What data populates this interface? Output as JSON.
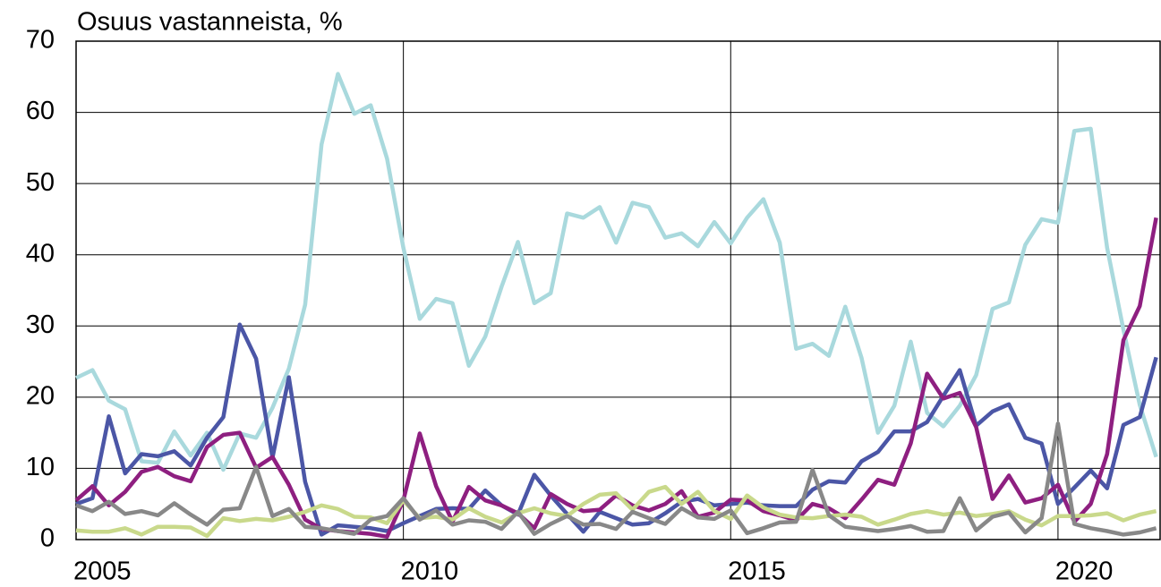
{
  "chart_data": {
    "type": "line",
    "y_axis_label": "Osuus vastanneista, %",
    "x": [
      2005,
      2005.25,
      2005.5,
      2005.75,
      2006,
      2006.25,
      2006.5,
      2006.75,
      2007,
      2007.25,
      2007.5,
      2007.75,
      2008,
      2008.25,
      2008.5,
      2008.75,
      2009,
      2009.25,
      2009.5,
      2009.75,
      2010,
      2010.25,
      2010.5,
      2010.75,
      2011,
      2011.25,
      2011.5,
      2011.75,
      2012,
      2012.25,
      2012.5,
      2012.75,
      2013,
      2013.25,
      2013.5,
      2013.75,
      2014,
      2014.25,
      2014.5,
      2014.75,
      2015,
      2015.25,
      2015.5,
      2015.75,
      2016,
      2016.25,
      2016.5,
      2016.75,
      2017,
      2017.25,
      2017.5,
      2017.75,
      2018,
      2018.25,
      2018.5,
      2018.75,
      2019,
      2019.25,
      2019.5,
      2019.75,
      2020,
      2020.25,
      2020.5,
      2020.75,
      2021,
      2021.25,
      2021.5
    ],
    "series": [
      {
        "color": "#a9d9dd",
        "values": [
          22.7,
          23.8,
          19.5,
          18.3,
          11,
          10.8,
          15.2,
          11.8,
          15,
          9.8,
          14.9,
          14.3,
          18.5,
          24,
          33,
          55.5,
          65.4,
          59.8,
          61,
          53.5,
          41,
          31,
          33.8,
          33.2,
          24.4,
          28.5,
          35.5,
          41.8,
          33.2,
          34.6,
          45.8,
          45.2,
          46.7,
          41.7,
          47.3,
          46.7,
          42.4,
          43,
          41.2,
          44.6,
          41.6,
          45.2,
          47.8,
          41.7,
          26.8,
          27.5,
          25.8,
          32.7,
          25.5,
          15,
          18.8,
          27.8,
          17.8,
          15.9,
          18.8,
          23.1,
          32.4,
          33.3,
          41.4,
          45,
          44.5,
          57.4,
          57.7,
          41,
          29.5,
          18.9,
          11.6
        ]
      },
      {
        "color": "#4b56a6",
        "values": [
          5,
          5.8,
          17.3,
          9.3,
          12,
          11.7,
          12.4,
          10.4,
          14.3,
          17.2,
          30.2,
          25.4,
          11.5,
          22.8,
          8.1,
          0.7,
          2,
          1.8,
          1.6,
          1.2,
          2.3,
          3.3,
          4.3,
          4.4,
          4.3,
          6.9,
          4.8,
          3.5,
          9.1,
          6.2,
          3.6,
          1.1,
          3.9,
          3,
          2.1,
          2.3,
          3.7,
          5.3,
          5.7,
          4.8,
          5,
          5.2,
          4.8,
          4.7,
          4.7,
          7,
          8.2,
          8,
          11,
          12.3,
          15.2,
          15.2,
          16.5,
          20.2,
          23.8,
          16,
          18,
          19,
          14.3,
          13.5,
          5,
          7.3,
          9.7,
          7.2,
          16.1,
          17.2,
          25.6
        ]
      },
      {
        "color": "#8e1f80",
        "values": [
          5.5,
          7.5,
          4.8,
          6.7,
          9.5,
          10.2,
          8.9,
          8.2,
          13,
          14.7,
          15,
          10.1,
          11.6,
          7.7,
          2.8,
          1.5,
          1.2,
          1,
          0.8,
          0.4,
          5.5,
          14.9,
          7.5,
          2.5,
          7.4,
          5.5,
          4.8,
          3.7,
          1.6,
          6.4,
          5,
          4,
          4.2,
          6.2,
          4.8,
          4.1,
          5,
          6.8,
          3.2,
          3.8,
          5.6,
          5.5,
          4,
          3.4,
          2.7,
          5,
          4.4,
          3,
          5.6,
          8.4,
          7.7,
          13.5,
          23.3,
          19.8,
          20.6,
          15.8,
          5.7,
          9,
          5.2,
          5.8,
          7.7,
          2.5,
          5,
          12,
          28,
          32.8,
          45.2
        ]
      },
      {
        "color": "#c9d98b",
        "values": [
          1.3,
          1.1,
          1.1,
          1.6,
          0.7,
          1.8,
          1.8,
          1.7,
          0.5,
          3,
          2.6,
          2.9,
          2.7,
          3.2,
          3.9,
          4.8,
          4.3,
          3.2,
          3.1,
          2.3,
          5.5,
          3,
          3.2,
          2.8,
          4.4,
          3.2,
          2.4,
          3.7,
          4.4,
          3.7,
          3.3,
          5,
          6.3,
          6.5,
          4.2,
          6.7,
          7.4,
          5,
          6.7,
          4,
          2.9,
          6.2,
          4.5,
          3.5,
          3.1,
          3,
          3.3,
          3.5,
          3.2,
          2.1,
          2.8,
          3.6,
          4,
          3.5,
          3.8,
          3.3,
          3.6,
          4,
          2.8,
          2,
          3.3,
          3.3,
          3.4,
          3.7,
          2.7,
          3.5,
          4
        ]
      },
      {
        "color": "#888888",
        "values": [
          4.8,
          4,
          5.3,
          3.6,
          4,
          3.4,
          5.1,
          3.5,
          2.1,
          4.2,
          4.4,
          10.2,
          3.3,
          4.3,
          1.8,
          1.6,
          1.2,
          0.8,
          2.8,
          3.3,
          5.8,
          2.8,
          4.1,
          2.1,
          2.7,
          2.5,
          1.5,
          3.9,
          0.8,
          2.2,
          3.3,
          2.1,
          2.2,
          1.5,
          3.9,
          3,
          2.2,
          4.4,
          3.1,
          2.9,
          4.1,
          0.9,
          1.6,
          2.4,
          2.5,
          9.8,
          3.4,
          1.8,
          1.5,
          1.2,
          1.5,
          1.9,
          1.1,
          1.2,
          5.8,
          1.3,
          3.2,
          3.8,
          1,
          3,
          16.3,
          2.2,
          1.6,
          1.2,
          0.7,
          1,
          1.6
        ]
      }
    ],
    "xlim": [
      2005,
      2021.56
    ],
    "xticks": [
      2005,
      2010,
      2015,
      2020
    ],
    "ylim": [
      0,
      70
    ],
    "yticks": [
      0,
      10,
      20,
      30,
      40,
      50,
      60,
      70
    ],
    "grid": true
  }
}
